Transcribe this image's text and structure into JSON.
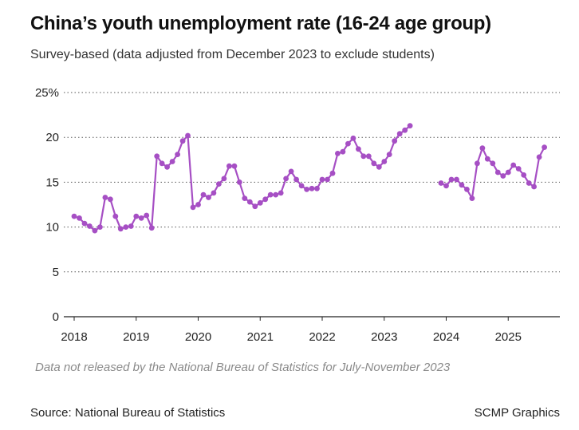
{
  "title": "China’s youth unemployment rate (16-24 age group)",
  "subtitle": "Survey-based (data adjusted from December 2023 to exclude students)",
  "note": "Data not released by the National Bureau of Statistics for July-November 2023",
  "source": "Source: National Bureau of Statistics",
  "credit": "SCMP Graphics",
  "chart_data": {
    "type": "line",
    "title": "China’s youth unemployment rate (16-24 age group)",
    "subtitle": "Survey-based (data adjusted from December 2023 to exclude students)",
    "xlabel": "",
    "ylabel": "",
    "ylim": [
      0,
      25
    ],
    "yticks": [
      0,
      5,
      10,
      15,
      20,
      25
    ],
    "ytick_labels": [
      "0",
      "5",
      "10",
      "15",
      "20",
      "25%"
    ],
    "xticks": [
      "2018",
      "2019",
      "2020",
      "2021",
      "2022",
      "2023",
      "2024",
      "2025"
    ],
    "grid": "horizontal dotted",
    "color": "#a64fc4",
    "series": [
      {
        "start": "2018-01",
        "values": [
          11.2,
          11.0,
          10.4,
          10.1,
          9.6,
          10.0,
          13.3,
          13.1,
          11.2,
          9.8,
          10.0,
          10.1,
          11.2,
          11.0,
          11.3,
          9.9,
          17.9,
          17.1,
          16.7,
          17.3,
          18.1,
          19.6,
          20.2,
          12.2,
          12.5,
          13.6,
          13.3,
          13.8,
          14.8,
          15.4,
          16.8,
          16.8,
          15.0,
          13.2,
          12.8,
          12.3,
          12.7,
          13.1,
          13.6,
          13.6,
          13.8,
          15.4,
          16.2,
          15.3,
          14.6,
          14.2,
          14.3,
          14.3,
          15.3,
          15.3,
          16.0,
          18.2,
          18.4,
          19.3,
          19.9,
          18.7,
          17.9,
          17.9,
          17.1,
          16.7,
          17.3,
          18.1,
          19.6,
          20.4,
          20.8,
          21.3
        ]
      },
      {
        "start": "2023-12",
        "values": [
          14.9,
          14.6,
          15.3,
          15.3,
          14.7,
          14.2,
          13.2,
          17.1,
          18.8,
          17.6,
          17.1,
          16.1,
          15.7,
          16.1,
          16.9,
          16.5,
          15.8,
          14.9,
          14.5,
          17.8,
          18.9
        ]
      }
    ]
  }
}
